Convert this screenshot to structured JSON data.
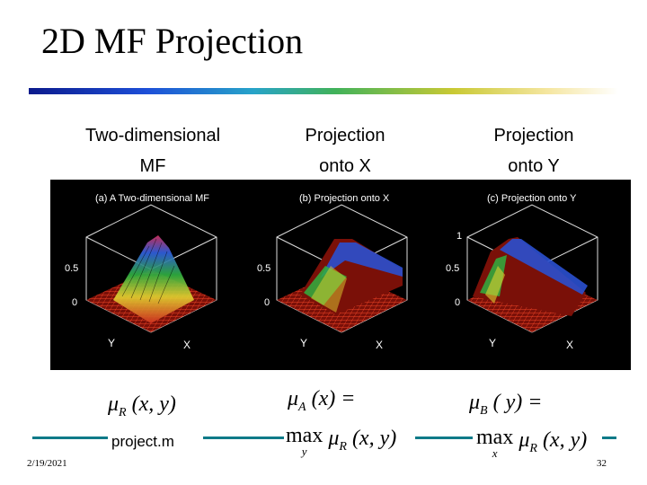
{
  "slide": {
    "title": "2D MF Projection",
    "column_headers": [
      {
        "line1": "Two-dimensional",
        "line2": "MF"
      },
      {
        "line1": "Projection",
        "line2": "onto X"
      },
      {
        "line1": "Projection",
        "line2": "onto Y"
      }
    ],
    "plots": [
      {
        "title": "(a) A Two-dimensional MF",
        "y_ticks": [
          "0.5",
          "0"
        ],
        "top_tick": "",
        "axis_y": "Y",
        "axis_x": "X"
      },
      {
        "title": "(b) Projection onto X",
        "y_ticks": [
          "0.5",
          "0"
        ],
        "top_tick": "",
        "axis_y": "Y",
        "axis_x": "X"
      },
      {
        "title": "(c) Projection onto Y",
        "y_ticks": [
          "0.5",
          "0"
        ],
        "top_tick": "1",
        "axis_y": "Y",
        "axis_x": "X"
      }
    ],
    "formulas": {
      "f1": {
        "mu": "μ",
        "sub": "R",
        "args": "(x, y)"
      },
      "f2": {
        "mu": "μ",
        "sub": "A",
        "args": "(x) =",
        "max": "max",
        "max_sub": "y",
        "mu2": "μ",
        "sub2": "R",
        "args2": "(x, y)"
      },
      "f3": {
        "mu": "μ",
        "sub": "B",
        "args": "( y) =",
        "max": "max",
        "max_sub": "x",
        "mu2": "μ",
        "sub2": "R",
        "args2": "(x, y)"
      }
    },
    "footer_label": "project.m",
    "date": "2/19/2021",
    "page_number": "32"
  }
}
